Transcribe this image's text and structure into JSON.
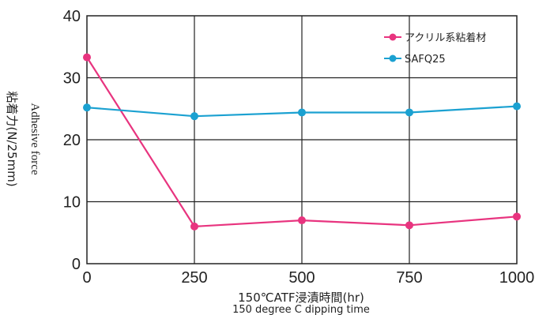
{
  "chart_data": {
    "type": "line",
    "x": [
      0,
      250,
      500,
      750,
      1000
    ],
    "x_ticks": [
      "0",
      "250",
      "500",
      "750",
      "1000"
    ],
    "y_ticks": [
      "0",
      "10",
      "20",
      "30",
      "40"
    ],
    "xlim": [
      0,
      1000
    ],
    "ylim": [
      0,
      40
    ],
    "xlabel_jp": "150℃ATF浸漬時間(hr)",
    "xlabel_en": "150 degree C dipping time",
    "ylabel_en": "Adhesive force",
    "ylabel_jp": "粘着力(N/25mm)",
    "grid": "horizontal",
    "legend_position": "top-right",
    "series": [
      {
        "name": "アクリル系粘着材",
        "color": "#e8347f",
        "values": [
          33.3,
          6.0,
          7.0,
          6.2,
          7.6
        ]
      },
      {
        "name": "SAFQ25",
        "color": "#1ba1d1",
        "values": [
          25.2,
          23.8,
          24.4,
          24.4,
          25.4
        ]
      }
    ]
  }
}
